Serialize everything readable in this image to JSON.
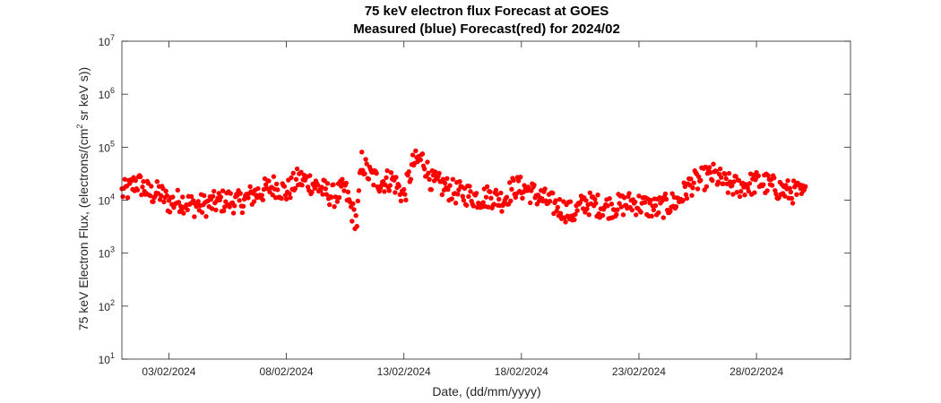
{
  "chart_data": {
    "type": "scatter",
    "title": "75 keV electron flux Forecast at GOES",
    "subtitle": "Measured (blue) Forecast(red) for 2024/02",
    "xlabel": "Date, (dd/mm/yyyy)",
    "ylabel_main": "75 keV Electron Flux, (electrons/(cm",
    "ylabel_sup": "2",
    "ylabel_tail": " sr keV s))",
    "x_ticks": [
      "03/02/2024",
      "08/02/2024",
      "13/02/2024",
      "18/02/2024",
      "23/02/2024",
      "28/02/2024"
    ],
    "x_tick_days": [
      3,
      8,
      13,
      18,
      23,
      28
    ],
    "xlim": [
      1,
      32
    ],
    "y_scale": "log",
    "ylim": [
      10,
      10000000
    ],
    "y_ticks": [
      {
        "base": "10",
        "exp": "1",
        "value": 10
      },
      {
        "base": "10",
        "exp": "2",
        "value": 100
      },
      {
        "base": "10",
        "exp": "3",
        "value": 1000
      },
      {
        "base": "10",
        "exp": "4",
        "value": 10000
      },
      {
        "base": "10",
        "exp": "5",
        "value": 100000
      },
      {
        "base": "10",
        "exp": "6",
        "value": 1000000
      },
      {
        "base": "10",
        "exp": "7",
        "value": 10000000
      }
    ],
    "grid": false,
    "marker_color": "#ff0000",
    "series": [
      {
        "color": "#ff0000",
        "anchors": [
          [
            1.0,
            14000
          ],
          [
            1.3,
            16000
          ],
          [
            1.6,
            22000
          ],
          [
            1.9,
            18000
          ],
          [
            2.2,
            13000
          ],
          [
            2.6,
            14000
          ],
          [
            3.0,
            9000
          ],
          [
            3.5,
            10000
          ],
          [
            4.0,
            8000
          ],
          [
            4.5,
            8000
          ],
          [
            5.0,
            9000
          ],
          [
            5.5,
            10000
          ],
          [
            6.0,
            9000
          ],
          [
            6.5,
            12000
          ],
          [
            7.0,
            15000
          ],
          [
            7.5,
            19000
          ],
          [
            8.0,
            14000
          ],
          [
            8.5,
            25000
          ],
          [
            9.0,
            22000
          ],
          [
            9.5,
            16000
          ],
          [
            10.0,
            12000
          ],
          [
            10.5,
            16000
          ],
          [
            10.8,
            6000
          ],
          [
            11.0,
            4000
          ],
          [
            11.2,
            55000
          ],
          [
            11.5,
            30000
          ],
          [
            12.0,
            22000
          ],
          [
            12.5,
            25000
          ],
          [
            13.0,
            12000
          ],
          [
            13.4,
            50000
          ],
          [
            13.8,
            60000
          ],
          [
            14.2,
            22000
          ],
          [
            14.7,
            18000
          ],
          [
            15.2,
            14000
          ],
          [
            15.7,
            13000
          ],
          [
            16.2,
            11000
          ],
          [
            16.7,
            12000
          ],
          [
            17.2,
            10000
          ],
          [
            17.7,
            18000
          ],
          [
            18.2,
            16000
          ],
          [
            18.7,
            12000
          ],
          [
            19.2,
            9000
          ],
          [
            19.7,
            7000
          ],
          [
            20.2,
            5500
          ],
          [
            20.7,
            9000
          ],
          [
            21.2,
            8000
          ],
          [
            21.7,
            7500
          ],
          [
            22.2,
            8000
          ],
          [
            22.7,
            9000
          ],
          [
            23.2,
            8000
          ],
          [
            23.7,
            7000
          ],
          [
            24.2,
            8000
          ],
          [
            24.7,
            10000
          ],
          [
            25.2,
            20000
          ],
          [
            25.7,
            25000
          ],
          [
            26.2,
            30000
          ],
          [
            26.7,
            20000
          ],
          [
            27.2,
            18000
          ],
          [
            27.7,
            20000
          ],
          [
            28.2,
            22000
          ],
          [
            28.7,
            18000
          ],
          [
            29.2,
            15000
          ],
          [
            29.7,
            14000
          ],
          [
            30.1,
            12000
          ]
        ]
      }
    ],
    "points_per_day": 24
  }
}
